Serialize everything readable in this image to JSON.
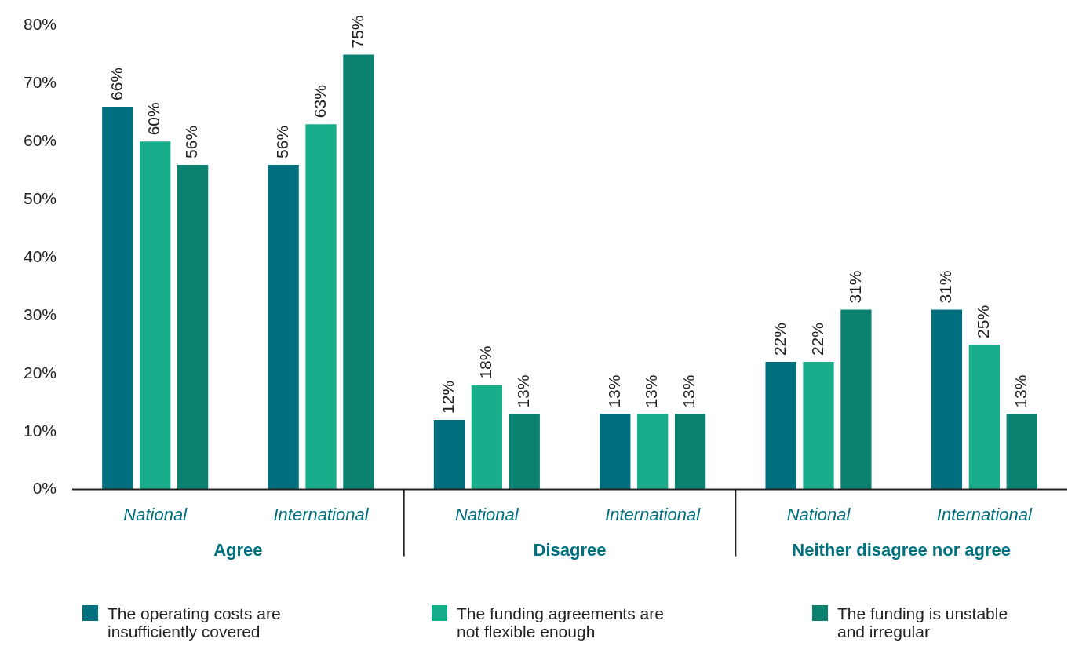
{
  "chart_data": {
    "type": "bar",
    "categories": [
      "National",
      "International",
      "National",
      "International",
      "National",
      "International"
    ],
    "series": [
      {
        "name": "The operating costs are insufficiently covered",
        "color": "#00707f",
        "values": [
          66,
          56,
          12,
          13,
          22,
          31
        ]
      },
      {
        "name": "The funding agreements are not flexible enough",
        "color": "#17ad8a",
        "values": [
          60,
          63,
          18,
          13,
          22,
          25
        ]
      },
      {
        "name": "The funding is unstable and irregular",
        "color": "#0b8270",
        "values": [
          56,
          75,
          13,
          13,
          31,
          13
        ]
      }
    ],
    "ylim": [
      0,
      80
    ],
    "yticks": [
      {
        "value": 0,
        "label": "0%"
      },
      {
        "value": 10,
        "label": "10%"
      },
      {
        "value": 20,
        "label": "20%"
      },
      {
        "value": 30,
        "label": "30%"
      },
      {
        "value": 40,
        "label": "40%"
      },
      {
        "value": 50,
        "label": "50%"
      },
      {
        "value": 60,
        "label": "60%"
      },
      {
        "value": 70,
        "label": "70%"
      },
      {
        "value": 80,
        "label": "80%"
      }
    ],
    "value_labels": [
      [
        "66%",
        "56%",
        "12%",
        "13%",
        "22%",
        "31%"
      ],
      [
        "60%",
        "63%",
        "18%",
        "13%",
        "22%",
        "25%"
      ],
      [
        "56%",
        "75%",
        "13%",
        "13%",
        "31%",
        "13%"
      ]
    ],
    "annotations": [
      "Agree",
      "Disagree",
      "Neither disagree nor agree"
    ],
    "grid": false,
    "legend": "bottom"
  }
}
